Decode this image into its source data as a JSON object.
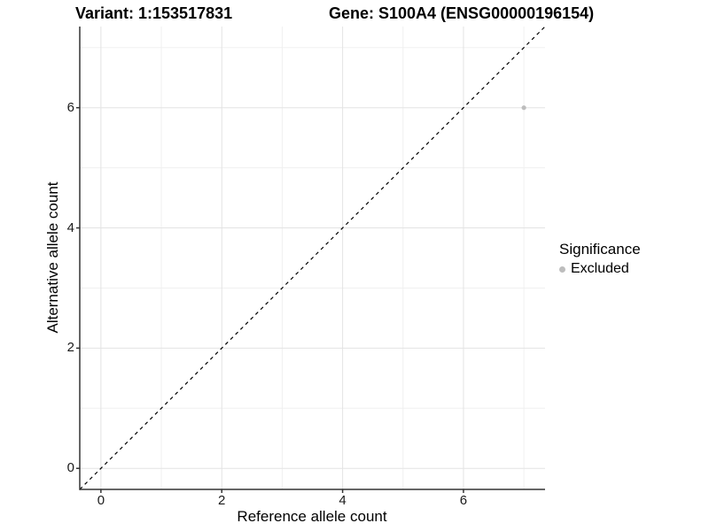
{
  "figure": {
    "title_left": "Variant: 1:153517831",
    "title_right": "Gene: S100A4 (ENSG00000196154)"
  },
  "chart_data": {
    "type": "scatter",
    "title": "Variant: 1:153517831 | Gene: S100A4 (ENSG00000196154)",
    "xlabel": "Reference allele count",
    "ylabel": "Alternative allele count",
    "xlim": [
      -0.35,
      7.35
    ],
    "ylim": [
      -0.35,
      7.35
    ],
    "x_ticks": [
      0,
      2,
      4,
      6
    ],
    "y_ticks": [
      0,
      2,
      4,
      6
    ],
    "x_minor_ticks": [
      1,
      3,
      5,
      7
    ],
    "y_minor_ticks": [
      1,
      3,
      5,
      7
    ],
    "grid": true,
    "series": [
      {
        "name": "Excluded",
        "color": "#bdbdbd",
        "points": [
          {
            "x": 7,
            "y": 6
          }
        ]
      }
    ],
    "reference_line": {
      "type": "identity",
      "style": "dashed",
      "from": [
        -0.35,
        -0.35
      ],
      "to": [
        7.35,
        7.35
      ],
      "color": "#000000"
    },
    "legend": {
      "title": "Significance",
      "position": "right",
      "items": [
        {
          "label": "Excluded",
          "color": "#bdbdbd",
          "marker": "circle"
        }
      ]
    }
  },
  "colors": {
    "background": "#ffffff",
    "axis_line": "#333333",
    "tick_mark": "#333333",
    "tick_label": "#1a1a1a",
    "grid_major": "#e3e3e3",
    "grid_minor": "#f0f0f0",
    "point": "#bdbdbd"
  }
}
